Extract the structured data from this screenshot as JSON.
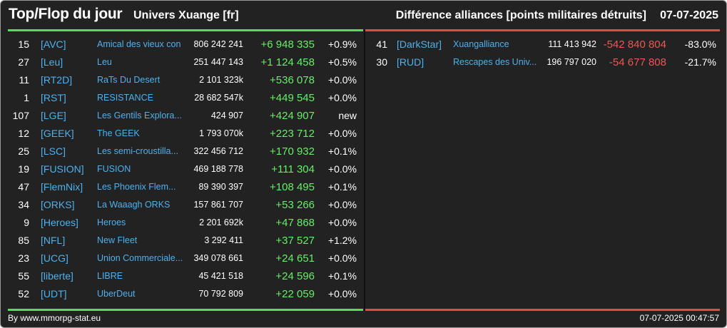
{
  "header": {
    "title": "Top/Flop du jour",
    "universe": "Univers Xuange [fr]",
    "subtitle": "Différence alliances [points militaires détruits]",
    "date": "07-07-2025"
  },
  "colors": {
    "background": "#222222",
    "top_accent": "#55dd55",
    "flop_accent": "#dd4c4c",
    "tag_link": "#4fb0ee",
    "positive": "#66ee66",
    "negative": "#ee5555"
  },
  "top": {
    "rows": [
      {
        "rank": "15",
        "tag": "[AVC]",
        "name": "Amical des vieux con",
        "points": "806 242 241",
        "diff": "+6 948 335",
        "pct": "+0.9%"
      },
      {
        "rank": "27",
        "tag": "[Leu]",
        "name": "Leu",
        "points": "251 447 143",
        "diff": "+1 124 458",
        "pct": "+0.5%"
      },
      {
        "rank": "11",
        "tag": "[RT2D]",
        "name": "RaTs Du Desert",
        "points": "2 101 323k",
        "diff": "+536 078",
        "pct": "+0.0%"
      },
      {
        "rank": "1",
        "tag": "[RST]",
        "name": "RESISTANCE",
        "points": "28 682 547k",
        "diff": "+449 545",
        "pct": "+0.0%"
      },
      {
        "rank": "107",
        "tag": "[LGE]",
        "name": "Les Gentils Explora...",
        "points": "424 907",
        "diff": "+424 907",
        "pct": "new"
      },
      {
        "rank": "12",
        "tag": "[GEEK]",
        "name": "The GEEK",
        "points": "1 793 070k",
        "diff": "+223 712",
        "pct": "+0.0%"
      },
      {
        "rank": "25",
        "tag": "[LSC]",
        "name": "Les semi-croustilla...",
        "points": "322 456 712",
        "diff": "+170 932",
        "pct": "+0.1%"
      },
      {
        "rank": "19",
        "tag": "[FUSION]",
        "name": "FUSION",
        "points": "469 188 778",
        "diff": "+111 304",
        "pct": "+0.0%"
      },
      {
        "rank": "47",
        "tag": "[FlemNix]",
        "name": "Les Phoenix Flem...",
        "points": "89 390 397",
        "diff": "+108 495",
        "pct": "+0.1%"
      },
      {
        "rank": "34",
        "tag": "[ORKS]",
        "name": "La Waaagh ORKS",
        "points": "157 861 707",
        "diff": "+53 266",
        "pct": "+0.0%"
      },
      {
        "rank": "9",
        "tag": "[Heroes]",
        "name": "Heroes",
        "points": "2 201 692k",
        "diff": "+47 868",
        "pct": "+0.0%"
      },
      {
        "rank": "85",
        "tag": "[NFL]",
        "name": "New Fleet",
        "points": "3 292 411",
        "diff": "+37 527",
        "pct": "+1.2%"
      },
      {
        "rank": "23",
        "tag": "[UCG]",
        "name": "Union Commerciale...",
        "points": "349 078 661",
        "diff": "+24 651",
        "pct": "+0.0%"
      },
      {
        "rank": "55",
        "tag": "[liberte]",
        "name": "LIBRE",
        "points": "45 421 518",
        "diff": "+24 596",
        "pct": "+0.1%"
      },
      {
        "rank": "52",
        "tag": "[UDT]",
        "name": "UberDeut",
        "points": "70 792 809",
        "diff": "+22 059",
        "pct": "+0.0%"
      }
    ]
  },
  "flop": {
    "rows": [
      {
        "rank": "41",
        "tag": "[DarkStar]",
        "name": "Xuangalliance",
        "points": "111 413 942",
        "diff": "-542 840 804",
        "pct": "-83.0%"
      },
      {
        "rank": "30",
        "tag": "[RUD]",
        "name": "Rescapes des Univ...",
        "points": "196 797 020",
        "diff": "-54 677 808",
        "pct": "-21.7%"
      }
    ]
  },
  "footer": {
    "credit": "By www.mmorpg-stat.eu",
    "timestamp": "07-07-2025 00:47:57"
  }
}
